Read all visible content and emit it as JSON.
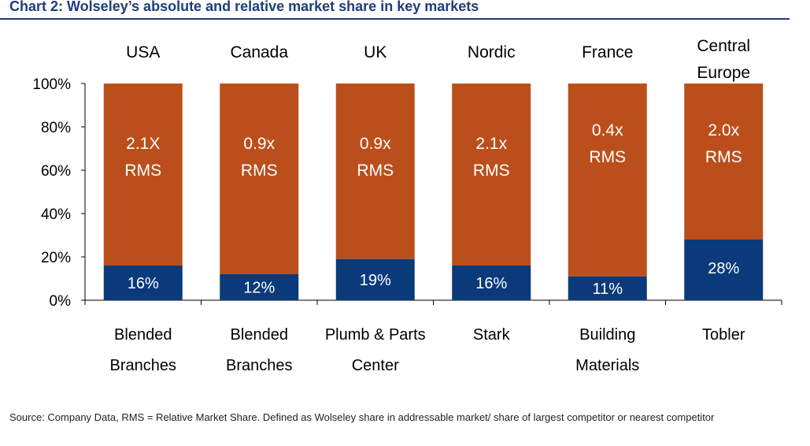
{
  "title": "Chart 2: Wolseley’s absolute and relative market share in key markets",
  "source": "Source: Company Data, RMS = Relative Market Share. Defined as Wolseley share in addressable market/ share of largest competitor or nearest competitor",
  "colors": {
    "share": "#0a3a7a",
    "rest": "#bb4f1c",
    "title": "#1f3d7a"
  },
  "chart_data": {
    "type": "bar",
    "stacked": true,
    "ylim": [
      0,
      100
    ],
    "yticks": [
      "0%",
      "20%",
      "40%",
      "60%",
      "80%",
      "100%"
    ],
    "markets": [
      [
        "USA"
      ],
      [
        "Canada"
      ],
      [
        "UK"
      ],
      [
        "Nordic"
      ],
      [
        "France"
      ],
      [
        "Central",
        "Europe"
      ]
    ],
    "categories": [
      [
        "Blended",
        "Branches"
      ],
      [
        "Blended",
        "Branches"
      ],
      [
        "Plumb & Parts",
        "Center"
      ],
      [
        "Stark"
      ],
      [
        "Building",
        "Materials"
      ],
      [
        "Tobler"
      ]
    ],
    "values": [
      16,
      12,
      19,
      16,
      11,
      28
    ],
    "value_labels": [
      "16%",
      "12%",
      "19%",
      "16%",
      "11%",
      "28%"
    ],
    "rms_labels": [
      [
        "2.1X",
        "RMS"
      ],
      [
        "0.9x",
        "RMS"
      ],
      [
        "0.9x",
        "RMS"
      ],
      [
        "2.1x",
        "RMS"
      ],
      [
        "0.4x",
        "RMS"
      ],
      [
        "2.0x",
        "RMS"
      ]
    ]
  }
}
